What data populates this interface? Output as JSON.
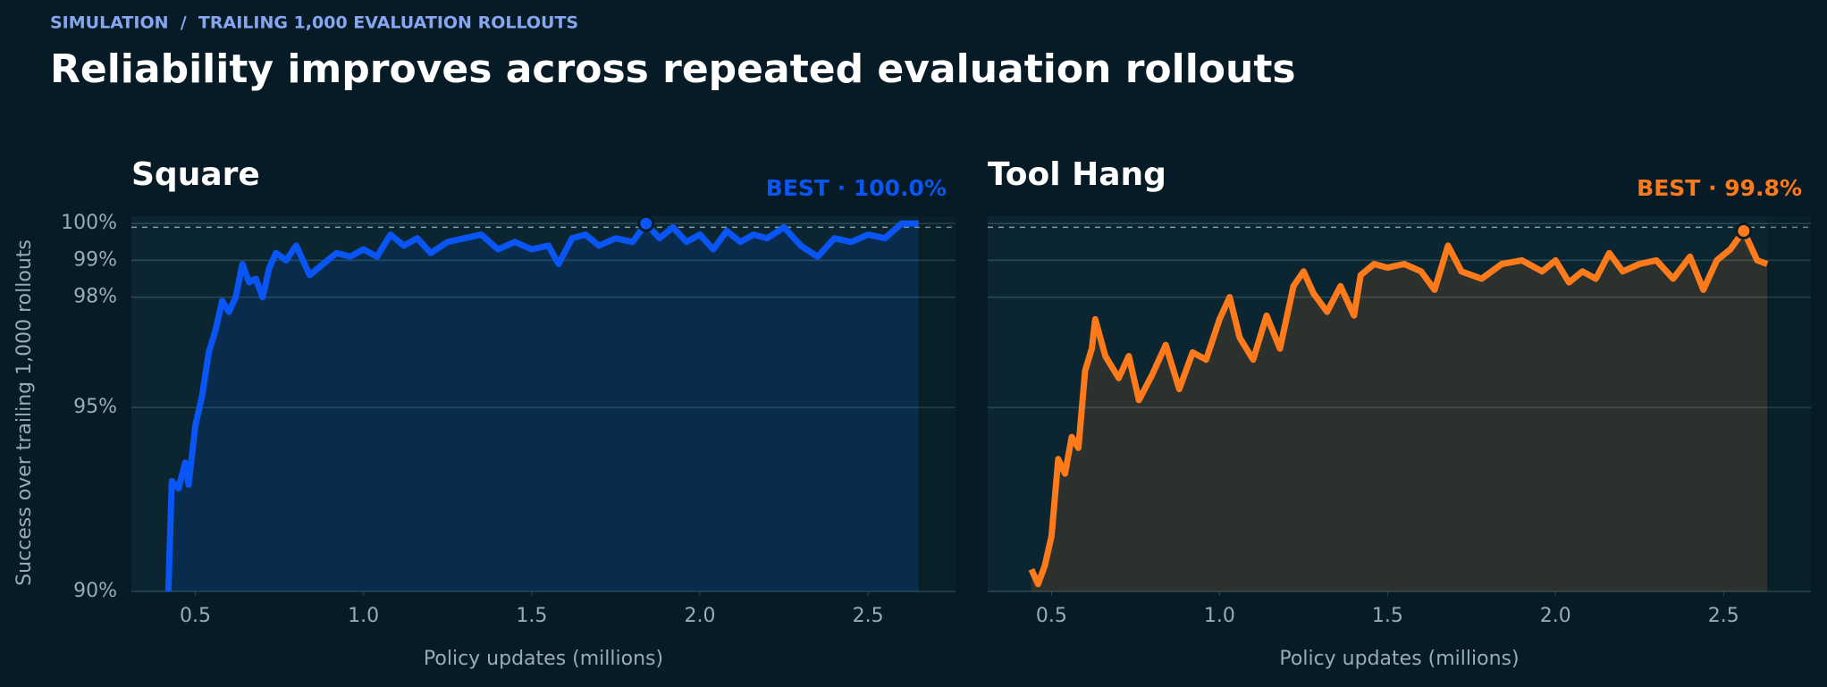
{
  "header": {
    "kicker": "SIMULATION  /  TRAILING 1,000 EVALUATION ROLLOUTS",
    "title": "Reliability improves across repeated evaluation rollouts"
  },
  "chart_data": [
    {
      "type": "line",
      "title": "Square",
      "color": "#0a55f5",
      "y_label": "Success over trailing 1,000 rollouts",
      "x_label": "Policy updates (millions)",
      "xlim": [
        0.31,
        2.76
      ],
      "ylim": [
        90,
        100.2
      ],
      "xticks": [
        0.5,
        {
          "value": 1,
          "label": "1.0"
        },
        1.5,
        {
          "value": 2,
          "label": "2.0"
        },
        2.5
      ],
      "yticks": [
        {
          "value": 90,
          "label": "90%"
        },
        {
          "value": 95,
          "label": "95%"
        },
        {
          "value": 98,
          "label": "98%"
        },
        {
          "value": 99,
          "label": "99%"
        },
        {
          "value": 100,
          "label": "100%"
        }
      ],
      "reference_line": 99.9,
      "best": {
        "x": 1.84,
        "value": 100,
        "label": "BEST · 100.0%"
      },
      "x": [
        0.42,
        0.43,
        0.45,
        0.47,
        0.48,
        0.5,
        0.52,
        0.54,
        0.56,
        0.58,
        0.6,
        0.62,
        0.64,
        0.66,
        0.68,
        0.7,
        0.72,
        0.74,
        0.77,
        0.8,
        0.84,
        0.88,
        0.92,
        0.96,
        1.0,
        1.04,
        1.08,
        1.12,
        1.16,
        1.2,
        1.25,
        1.3,
        1.35,
        1.4,
        1.45,
        1.5,
        1.55,
        1.58,
        1.62,
        1.66,
        1.7,
        1.75,
        1.8,
        1.84,
        1.88,
        1.92,
        1.96,
        2.0,
        2.04,
        2.08,
        2.12,
        2.16,
        2.2,
        2.25,
        2.3,
        2.35,
        2.4,
        2.45,
        2.5,
        2.55,
        2.6,
        2.65
      ],
      "values": [
        90.0,
        93.0,
        92.8,
        93.5,
        92.9,
        94.5,
        95.3,
        96.5,
        97.1,
        97.9,
        97.6,
        98.0,
        98.9,
        98.4,
        98.5,
        98.0,
        98.8,
        99.2,
        99.0,
        99.4,
        98.6,
        98.9,
        99.2,
        99.1,
        99.3,
        99.1,
        99.7,
        99.4,
        99.6,
        99.2,
        99.5,
        99.6,
        99.7,
        99.3,
        99.5,
        99.3,
        99.4,
        98.9,
        99.6,
        99.7,
        99.4,
        99.6,
        99.5,
        100.0,
        99.6,
        99.9,
        99.5,
        99.7,
        99.3,
        99.8,
        99.5,
        99.7,
        99.6,
        99.9,
        99.4,
        99.1,
        99.6,
        99.5,
        99.7,
        99.6,
        100.0,
        100.0
      ]
    },
    {
      "type": "line",
      "title": "Tool Hang",
      "color": "#ff7a1a",
      "x_label": "Policy updates (millions)",
      "xlim": [
        0.31,
        2.76
      ],
      "ylim": [
        90,
        100.2
      ],
      "xticks": [
        0.5,
        {
          "value": 1,
          "label": "1.0"
        },
        1.5,
        {
          "value": 2,
          "label": "2.0"
        },
        2.5
      ],
      "reference_line": 99.9,
      "best": {
        "x": 2.56,
        "value": 99.8,
        "label": "BEST · 99.8%"
      },
      "x": [
        0.44,
        0.46,
        0.48,
        0.5,
        0.52,
        0.54,
        0.56,
        0.58,
        0.6,
        0.62,
        0.63,
        0.66,
        0.7,
        0.73,
        0.76,
        0.8,
        0.84,
        0.88,
        0.92,
        0.96,
        1.0,
        1.03,
        1.06,
        1.1,
        1.14,
        1.18,
        1.22,
        1.25,
        1.28,
        1.32,
        1.36,
        1.4,
        1.42,
        1.46,
        1.5,
        1.55,
        1.6,
        1.64,
        1.68,
        1.72,
        1.78,
        1.84,
        1.9,
        1.96,
        2.0,
        2.04,
        2.08,
        2.12,
        2.16,
        2.2,
        2.25,
        2.3,
        2.35,
        2.4,
        2.44,
        2.48,
        2.52,
        2.56,
        2.6,
        2.63
      ],
      "values": [
        90.6,
        90.2,
        90.7,
        91.5,
        93.6,
        93.2,
        94.2,
        93.9,
        96.0,
        96.6,
        97.4,
        96.4,
        95.8,
        96.4,
        95.2,
        95.9,
        96.7,
        95.5,
        96.5,
        96.3,
        97.4,
        98.0,
        96.9,
        96.3,
        97.5,
        96.6,
        98.3,
        98.7,
        98.1,
        97.6,
        98.3,
        97.5,
        98.6,
        98.9,
        98.8,
        98.9,
        98.7,
        98.2,
        99.4,
        98.7,
        98.5,
        98.9,
        99.0,
        98.7,
        99.0,
        98.4,
        98.7,
        98.5,
        99.2,
        98.7,
        98.9,
        99.0,
        98.5,
        99.1,
        98.2,
        99.0,
        99.3,
        99.8,
        99.0,
        98.9
      ]
    }
  ]
}
